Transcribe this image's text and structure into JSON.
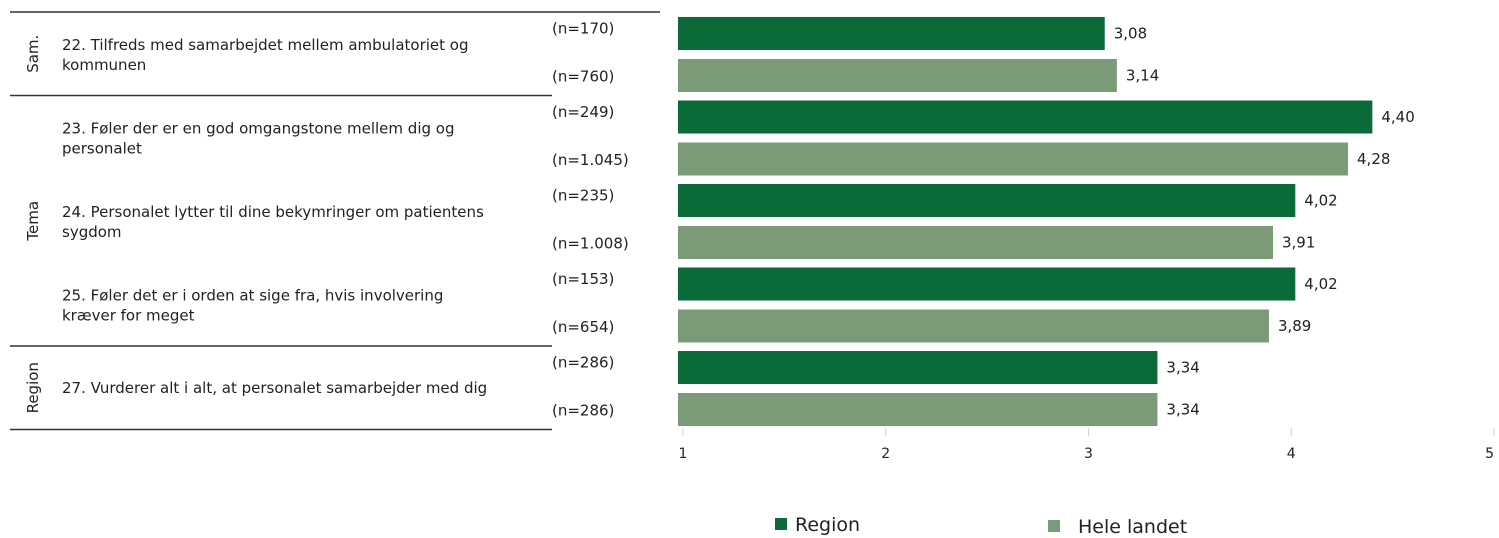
{
  "colors": {
    "region": "#0a6b39",
    "national": "#7b9b78",
    "line": "#333333",
    "axis": "#d0d0d0"
  },
  "chart_data": {
    "type": "bar",
    "orientation": "horizontal",
    "title": "",
    "xlabel": "",
    "ylabel": "",
    "xlim": [
      1,
      5
    ],
    "x_ticks": [
      "1",
      "2",
      "3",
      "4",
      "5"
    ],
    "legend": {
      "placement": "bottom",
      "entries": [
        "Region",
        "Hele landet"
      ]
    },
    "groups": [
      {
        "label": "Sam.",
        "question_indices": [
          0
        ]
      },
      {
        "label": "Tema",
        "question_indices": [
          1,
          2,
          3
        ]
      },
      {
        "label": "Region",
        "question_indices": [
          4
        ]
      }
    ],
    "questions": [
      {
        "text_lines": [
          "22. Tilfreds med samarbejdet mellem ambulatoriet og",
          "kommunen"
        ],
        "region": {
          "n": "(n=170)",
          "value": 3.08,
          "label": "3,08"
        },
        "national": {
          "n": "(n=760)",
          "value": 3.14,
          "label": "3,14"
        }
      },
      {
        "text_lines": [
          "23. Føler der er en god omgangstone mellem dig og",
          "personalet"
        ],
        "region": {
          "n": "(n=249)",
          "value": 4.4,
          "label": "4,40"
        },
        "national": {
          "n": "(n=1.045)",
          "value": 4.28,
          "label": "4,28"
        }
      },
      {
        "text_lines": [
          "24. Personalet lytter til dine bekymringer om patientens",
          "sygdom"
        ],
        "region": {
          "n": "(n=235)",
          "value": 4.02,
          "label": "4,02"
        },
        "national": {
          "n": "(n=1.008)",
          "value": 3.91,
          "label": "3,91"
        }
      },
      {
        "text_lines": [
          "25. Føler det er i orden at sige fra, hvis involvering",
          "kræver for meget"
        ],
        "region": {
          "n": "(n=153)",
          "value": 4.02,
          "label": "4,02"
        },
        "national": {
          "n": "(n=654)",
          "value": 3.89,
          "label": "3,89"
        }
      },
      {
        "text_lines": [
          "27. Vurderer alt i alt, at personalet samarbejder med dig"
        ],
        "region": {
          "n": "(n=286)",
          "value": 3.34,
          "label": "3,34"
        },
        "national": {
          "n": "(n=286)",
          "value": 3.34,
          "label": "3,34"
        }
      }
    ]
  }
}
